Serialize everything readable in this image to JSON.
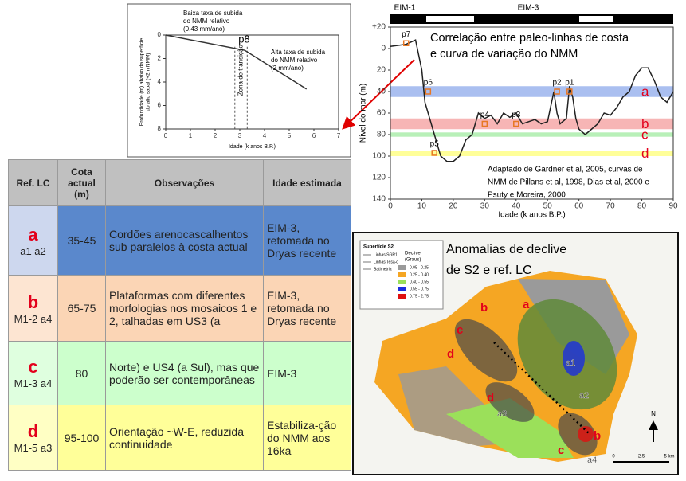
{
  "chart_data": [
    {
      "type": "line",
      "x": [
        0,
        3.2,
        5.7
      ],
      "values": [
        0,
        1.3,
        4.6
      ],
      "color": "#333333",
      "xlim": [
        0,
        7
      ],
      "xticks": [
        0,
        1,
        2,
        3,
        4,
        5,
        6,
        7
      ],
      "ylim": [
        0,
        8
      ],
      "yticks": [
        0,
        2,
        4,
        6,
        8
      ],
      "y_reversed": true,
      "xlabel": "Idade (k anos B.P.)",
      "ylabel": [
        "Profundidade (m) abaixo da superfície",
        "do alto sapal (+2m NMM)"
      ],
      "note_low": [
        "Baixa taxa de subida",
        "do NMM relativo",
        "(0,43 mm/ano)"
      ],
      "note_high": [
        "Alta taxa de subida",
        "do NMM relativo",
        "(2 mm/ano)"
      ],
      "point_label": "p8",
      "transition_label": "Zona de transição",
      "transition_lines": [
        2.8,
        3.3
      ]
    },
    {
      "type": "line",
      "x": [
        0,
        5,
        8,
        10,
        11,
        12,
        14,
        16,
        18,
        20,
        22,
        24,
        26,
        27,
        28,
        30,
        32,
        34,
        36,
        38,
        40,
        42,
        44,
        46,
        48,
        50,
        52,
        53,
        54,
        56,
        57,
        58,
        59,
        60,
        62,
        64,
        66,
        68,
        70,
        72,
        74,
        76,
        78,
        80,
        82,
        84,
        86,
        88,
        90
      ],
      "values": [
        -2,
        -4,
        -8,
        20,
        50,
        60,
        80,
        100,
        105,
        105,
        100,
        85,
        80,
        70,
        60,
        65,
        62,
        70,
        60,
        64,
        60,
        70,
        68,
        66,
        70,
        68,
        40,
        60,
        70,
        65,
        35,
        45,
        65,
        75,
        80,
        75,
        70,
        60,
        62,
        55,
        45,
        40,
        25,
        18,
        18,
        30,
        45,
        50,
        40
      ],
      "color": "#222222",
      "xlim": [
        0,
        90
      ],
      "xticks": [
        0,
        10,
        20,
        30,
        40,
        50,
        60,
        70,
        80,
        90
      ],
      "ylim": [
        -20,
        140
      ],
      "yticks": [
        {
          "value": -20,
          "label": "+20"
        },
        0,
        20,
        40,
        60,
        80,
        100,
        120,
        140
      ],
      "y_reversed": true,
      "xlabel": "Idade (k anos B.P.)",
      "ylabel": "Nível do mar (m)",
      "title": [
        "Correlação entre paleo-linhas de costa",
        "e curva de variação do NMM"
      ],
      "source": [
        "Adaptado de Gardner et al, 2005, curvas de",
        "NMM de Pillans et al, 1998, Dias et al, 2000 e",
        "Psuty e Moreira, 2000"
      ],
      "period_labels": [
        "EIM-1",
        "EIM-3"
      ],
      "bands": [
        {
          "label": "a",
          "range": [
            35,
            45
          ],
          "color": "#aabff0"
        },
        {
          "label": "b",
          "range": [
            65,
            75
          ],
          "color": "#f7b5b5"
        },
        {
          "label": "c",
          "range": [
            78,
            82
          ],
          "color": "#b8f0b8"
        },
        {
          "label": "d",
          "range": [
            95,
            100
          ],
          "color": "#ffff99"
        }
      ],
      "points": [
        {
          "label": "p1",
          "x": 57,
          "y": 40
        },
        {
          "label": "p2",
          "x": 53,
          "y": 40
        },
        {
          "label": "p3",
          "x": 40,
          "y": 70
        },
        {
          "label": "p4",
          "x": 30,
          "y": 70
        },
        {
          "label": "p5",
          "x": 14,
          "y": 97
        },
        {
          "label": "p6",
          "x": 12,
          "y": 40
        },
        {
          "label": "p7",
          "x": 5,
          "y": -5
        }
      ]
    }
  ],
  "table": {
    "header": [
      "Ref. LC",
      "Cota actual (m)",
      "Observações",
      "Idade estimada"
    ],
    "rows": [
      [
        "a",
        "a1 a2",
        "35-45",
        "Cordões arenocascalhentos sub paralelos à costa actual",
        "EIM-3, retomada no Dryas recente"
      ],
      [
        "b",
        "M1-2 a4",
        "65-75",
        "Plataformas com diferentes morfologias nos mosaicos 1 e 2,  talhadas em US3 (a",
        "EIM-3, retomada no Dryas recente"
      ],
      [
        "c",
        "M1-3 a4",
        "80",
        "Norte) e US4 (a Sul), mas que poderão ser contemporâneas",
        "EIM-3"
      ],
      [
        "d",
        "M1-5 a3",
        "95-100",
        "Orientação ~W-E, reduzida continuidade",
        "Estabiliza-ção do NMM aos 16ka"
      ]
    ]
  },
  "map": {
    "title": [
      "Anomalias de declive",
      "de S2 e ref. LC"
    ],
    "legend_title": "Superfície S2",
    "legend_lines": [
      "Linhas SGR1",
      "Linhas Tesa-c",
      "Batimetria"
    ],
    "legend_scale_title": [
      "Declive",
      "(Graus)"
    ],
    "classes": [
      {
        "label": "0.05 - 0.25",
        "color": "#9a9a9a"
      },
      {
        "label": "0.25 - 0.40",
        "color": "#f5a623"
      },
      {
        "label": "0.40 - 0.55",
        "color": "#9be05a"
      },
      {
        "label": "0.55 - 0.75",
        "color": "#1a2ee0"
      },
      {
        "label": "0.75 - 2.75",
        "color": "#e01010"
      }
    ],
    "labels": [
      "a",
      "b",
      "c",
      "d",
      "d",
      "b",
      "c",
      "a1",
      "a2",
      "a3",
      "a4"
    ],
    "north": "N",
    "scale": [
      "0",
      "2.5",
      "5 km"
    ]
  }
}
